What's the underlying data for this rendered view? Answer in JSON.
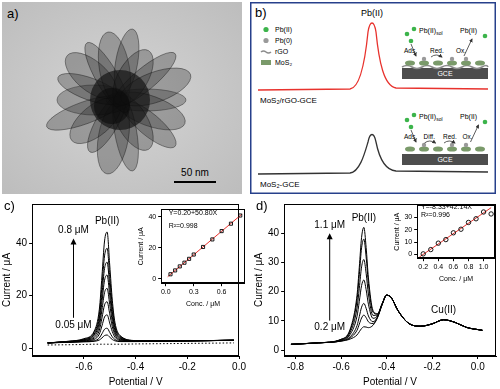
{
  "panels": {
    "a": {
      "label": "a)",
      "scale_bar": "50 nm"
    },
    "b": {
      "label": "b)",
      "peak_label": "Pb(II)",
      "traces": [
        {
          "label": "MoS₂/rGO-GCE",
          "color": "#e8322d"
        },
        {
          "label": "MoS₂-GCE",
          "color": "#333333"
        }
      ],
      "key": [
        {
          "label": "Pb(II)",
          "color": "#3cb44b"
        },
        {
          "label": "Pb(0)",
          "color": "#9a9a9a"
        },
        {
          "label": "rGO",
          "color": "#8c8c8c"
        },
        {
          "label": "MoS₂",
          "color": "#7a9a6a"
        }
      ],
      "schemes": [
        {
          "species": "Pb(II)",
          "species_sub": "sol",
          "steps": [
            "Ads.",
            "Red.",
            "Ox."
          ],
          "product": "Pb(II)",
          "electrode": "GCE"
        },
        {
          "species": "Pb(II)",
          "species_sub": "sol",
          "steps": [
            "Ads.",
            "Diff.",
            "Red.",
            "Ox."
          ],
          "product": "Pb(II)",
          "electrode": "GCE"
        }
      ]
    }
  },
  "chart_data": [
    {
      "type": "line",
      "panel_label": "c)",
      "x_label": "Potential / V",
      "y_label": "Current / μA",
      "x": [
        -0.74,
        -0.66,
        -0.6,
        -0.56,
        -0.54,
        -0.53,
        -0.52,
        -0.51,
        -0.5,
        -0.49,
        -0.48,
        -0.46,
        -0.4,
        -0.2,
        -0.02
      ],
      "xlim": [
        -0.8,
        0
      ],
      "xticks": [
        -0.6,
        -0.4,
        -0.2,
        {
          "value": 0,
          "label": "0.0"
        }
      ],
      "ylim": [
        -3,
        55
      ],
      "yticks": [
        0,
        20,
        40
      ],
      "grid": false,
      "series": [
        {
          "color": "#000000",
          "line_style": "dotted",
          "values": [
            1.2,
            1.3,
            1.4,
            1.5,
            1.5,
            1.5,
            1.5,
            1.5,
            1.5,
            1.5,
            1.5,
            1.5,
            1.6,
            1.8,
            2.0
          ]
        },
        {
          "color": "#000000",
          "line_style": "solid",
          "values": [
            2.0,
            2.2,
            2.4,
            2.6,
            3.1,
            3.9,
            4.8,
            5.0,
            4.2,
            3.3,
            2.8,
            2.5,
            2.5,
            2.8,
            3.0
          ]
        },
        {
          "color": "#000000",
          "line_style": "solid",
          "values": [
            2.0,
            2.3,
            2.5,
            2.8,
            3.9,
            5.5,
            7.2,
            7.6,
            6.0,
            4.3,
            3.3,
            2.6,
            2.6,
            2.8,
            3.0
          ]
        },
        {
          "color": "#000000",
          "line_style": "solid",
          "values": [
            2.0,
            2.3,
            2.6,
            3.3,
            5.4,
            8.5,
            11.9,
            12.7,
            9.6,
            6.3,
            4.2,
            2.9,
            2.6,
            2.8,
            3.0
          ]
        },
        {
          "color": "#000000",
          "line_style": "solid",
          "values": [
            2.0,
            2.4,
            2.8,
            3.8,
            6.9,
            11.5,
            16.5,
            17.7,
            13.1,
            8.2,
            5.1,
            3.2,
            2.7,
            2.8,
            3.0
          ]
        },
        {
          "color": "#000000",
          "line_style": "solid",
          "values": [
            2.0,
            2.4,
            2.9,
            4.4,
            8.5,
            14.6,
            21.2,
            22.8,
            16.7,
            10.1,
            6.0,
            3.5,
            2.7,
            2.8,
            3.0
          ]
        },
        {
          "color": "#000000",
          "line_style": "solid",
          "values": [
            2.0,
            2.5,
            3.1,
            5.0,
            10.0,
            17.7,
            25.9,
            27.9,
            20.2,
            12.0,
            6.9,
            3.8,
            2.8,
            2.8,
            3.0
          ]
        },
        {
          "color": "#000000",
          "line_style": "solid",
          "values": [
            2.0,
            2.5,
            3.2,
            5.4,
            11.5,
            20.6,
            30.4,
            32.8,
            23.7,
            13.9,
            7.8,
            4.1,
            2.8,
            2.8,
            3.0
          ]
        },
        {
          "color": "#000000",
          "line_style": "solid",
          "values": [
            2.0,
            2.6,
            3.4,
            6.0,
            13.0,
            23.8,
            35.2,
            38.1,
            27.4,
            15.9,
            8.7,
            4.5,
            2.9,
            2.8,
            3.0
          ]
        },
        {
          "color": "#000000",
          "line_style": "solid",
          "values": [
            2.0,
            2.6,
            3.6,
            6.5,
            14.9,
            27.5,
            40.9,
            44.3,
            31.7,
            18.3,
            9.9,
            4.8,
            2.9,
            2.8,
            3.0
          ]
        }
      ],
      "annotations": [
        {
          "text": "Pb(II)",
          "x": -0.51,
          "y": 46.5
        }
      ],
      "range_labels": {
        "low": {
          "text": "0.05 μM",
          "x": -0.64,
          "y": 7
        },
        "high": {
          "text": "0.8 μM",
          "x": -0.64,
          "y": 43
        }
      }
    },
    {
      "type": "scatter",
      "x_label": "Conc. / μM",
      "y_label": "Current / μA",
      "xlim": [
        -0.05,
        0.85
      ],
      "xticks": [
        {
          "value": 0,
          "label": "0.0"
        },
        0.3,
        0.6
      ],
      "ylim": [
        -3,
        45
      ],
      "yticks": [
        0,
        20,
        40
      ],
      "grid": false,
      "series": [
        {
          "type": "scatter",
          "marker": "square",
          "color": "#000000",
          "x": [
            0.05,
            0.1,
            0.15,
            0.2,
            0.25,
            0.3,
            0.4,
            0.5,
            0.6,
            0.7,
            0.8
          ],
          "values": [
            2.8,
            5.3,
            7.9,
            10.3,
            12.8,
            15.6,
            20.5,
            25.4,
            30.8,
            35.6,
            40.9
          ]
        },
        {
          "type": "line",
          "line_style": "solid",
          "color": "#e8322d",
          "x": [
            0.02,
            0.82
          ],
          "values": [
            1.2,
            41.9
          ]
        }
      ],
      "annotations": [
        {
          "text": "Y=0.20+50.80X",
          "x": 0.03,
          "y": 40
        },
        {
          "text": "R²=0.998",
          "x": 0.03,
          "y": 32
        }
      ]
    },
    {
      "type": "line",
      "panel_label": "d)",
      "x_label": "Potential / V",
      "y_label": "Current / μA",
      "x": [
        -0.82,
        -0.7,
        -0.6,
        -0.56,
        -0.53,
        -0.52,
        -0.51,
        -0.5,
        -0.49,
        -0.48,
        -0.46,
        -0.44,
        -0.42,
        -0.4,
        -0.38,
        -0.35,
        -0.3,
        -0.25,
        -0.2,
        -0.15,
        -0.1,
        -0.05,
        0.02
      ],
      "xlim": [
        -0.85,
        0.08
      ],
      "xticks": [
        -0.8,
        -0.6,
        -0.4,
        -0.2,
        {
          "value": 0,
          "label": "0.0"
        }
      ],
      "ylim": [
        -2,
        50
      ],
      "yticks": [
        0,
        10,
        20,
        30,
        40
      ],
      "grid": false,
      "series": [
        {
          "color": "#000000",
          "line_style": "solid",
          "values": [
            2.0,
            2.5,
            3.1,
            3.8,
            5.2,
            6.3,
            7.4,
            8.0,
            7.9,
            7.7,
            8.5,
            11.1,
            15.5,
            18.8,
            18.0,
            13.5,
            9.0,
            8.2,
            9.0,
            10.4,
            9.5,
            7.8,
            6.8
          ]
        },
        {
          "color": "#000000",
          "line_style": "solid",
          "values": [
            2.0,
            2.5,
            3.1,
            4.2,
            6.8,
            8.9,
            11.0,
            12.0,
            11.1,
            9.7,
            9.1,
            11.3,
            15.6,
            18.8,
            18.0,
            13.5,
            9.0,
            8.2,
            9.0,
            10.4,
            9.5,
            7.8,
            6.8
          ]
        },
        {
          "color": "#000000",
          "line_style": "solid",
          "values": [
            2.0,
            2.5,
            3.2,
            4.6,
            8.4,
            11.5,
            14.7,
            16.0,
            14.3,
            11.7,
            9.7,
            11.4,
            15.6,
            18.8,
            18.0,
            13.5,
            9.0,
            8.2,
            9.0,
            10.4,
            9.5,
            7.8,
            6.8
          ]
        },
        {
          "color": "#000000",
          "line_style": "solid",
          "values": [
            2.0,
            2.5,
            3.4,
            5.4,
            11.6,
            16.7,
            22.1,
            24.0,
            20.7,
            15.7,
            10.9,
            11.8,
            15.7,
            18.8,
            18.0,
            13.5,
            9.0,
            8.2,
            9.0,
            10.4,
            9.5,
            7.8,
            6.8
          ]
        },
        {
          "color": "#000000",
          "line_style": "solid",
          "values": [
            2.0,
            2.5,
            3.5,
            6.1,
            14.4,
            21.2,
            28.5,
            31.0,
            26.3,
            19.2,
            11.9,
            12.0,
            15.8,
            18.8,
            18.0,
            13.5,
            9.0,
            8.2,
            9.0,
            10.4,
            9.5,
            7.8,
            6.8
          ]
        },
        {
          "color": "#000000",
          "line_style": "solid",
          "values": [
            2.0,
            2.5,
            3.7,
            6.8,
            17.2,
            25.8,
            35.0,
            38.0,
            31.9,
            22.7,
            13.0,
            12.3,
            15.8,
            18.8,
            18.0,
            13.5,
            9.0,
            8.2,
            9.0,
            10.4,
            9.5,
            7.8,
            6.8
          ]
        },
        {
          "color": "#000000",
          "line_style": "solid",
          "values": [
            2.0,
            2.5,
            3.7,
            7.2,
            18.8,
            28.4,
            38.6,
            42.0,
            35.1,
            24.7,
            13.6,
            12.5,
            15.9,
            18.8,
            18.0,
            13.5,
            9.0,
            8.2,
            9.0,
            10.4,
            9.5,
            7.8,
            6.8
          ]
        }
      ],
      "annotations": [
        {
          "text": "Pb(II)",
          "x": -0.5,
          "y": 43.5
        },
        {
          "text": "Cu(II)",
          "x": -0.15,
          "y": 12
        }
      ],
      "range_labels": {
        "low": {
          "text": "0.2 μM",
          "x": -0.65,
          "y": 6
        },
        "high": {
          "text": "1.1 μM",
          "x": -0.65,
          "y": 41
        }
      }
    },
    {
      "type": "scatter",
      "x_label": "Conc. / μM",
      "y_label": "Current / μA",
      "xlim": [
        0.12,
        1.15
      ],
      "xticks": [
        0.2,
        0.4,
        0.6,
        0.8,
        {
          "value": 1,
          "label": "1.0"
        }
      ],
      "ylim": [
        -3,
        40
      ],
      "yticks": [
        0,
        10,
        20,
        30
      ],
      "grid": false,
      "series": [
        {
          "type": "scatter",
          "marker": "circle",
          "color": "#000000",
          "x": [
            0.2,
            0.3,
            0.4,
            0.5,
            0.6,
            0.7,
            0.8,
            0.9,
            1.0,
            1.1
          ],
          "values": [
            0.5,
            4.0,
            9.2,
            12.1,
            17.6,
            20.5,
            26.0,
            29.0,
            34.5,
            32.9
          ]
        },
        {
          "type": "line",
          "line_style": "solid",
          "color": "#e8322d",
          "x": [
            0.15,
            1.1
          ],
          "values": [
            -2.0,
            38.0
          ]
        }
      ],
      "annotations": [
        {
          "text": "Y=-8.33+42.14X",
          "x": 0.17,
          "y": 36
        },
        {
          "text": "R²=0.996",
          "x": 0.17,
          "y": 29
        }
      ]
    }
  ]
}
